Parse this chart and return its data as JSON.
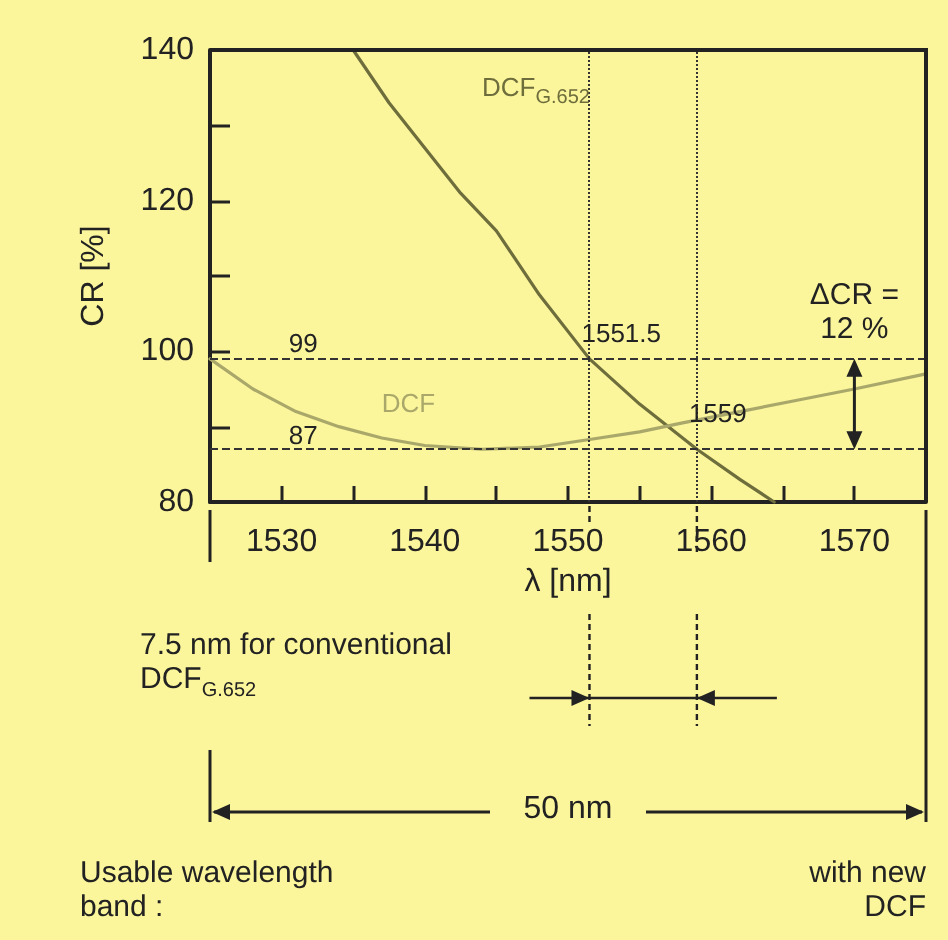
{
  "chart_data": {
    "type": "line",
    "xlabel": "λ [nm]",
    "ylabel": "CR [%]",
    "xlim": [
      1525,
      1575
    ],
    "xticks": [
      {
        "value": 1525,
        "label": null
      },
      1530,
      {
        "value": 1535,
        "label": null
      },
      1540,
      {
        "value": 1545,
        "label": null
      },
      1550,
      {
        "value": 1555,
        "label": null
      },
      1560,
      {
        "value": 1565,
        "label": null
      },
      1570,
      {
        "value": 1575,
        "label": null
      }
    ],
    "ylim": [
      80,
      140
    ],
    "yticks": [
      80,
      {
        "value": 90,
        "label": null
      },
      100,
      {
        "value": 110,
        "label": null
      },
      120,
      {
        "value": 130,
        "label": null
      },
      140
    ],
    "grid": false,
    "legend": false,
    "marker": "none",
    "line_style": "solid",
    "series": [
      {
        "name": "DCF$_{G.652}$",
        "color": "#6e6d3c",
        "x": [
          1535,
          1537.5,
          1540,
          1542.5,
          1545,
          1548,
          1551.5,
          1555,
          1559,
          1562,
          1564.4
        ],
        "values": [
          140,
          133,
          127,
          121,
          116,
          107.5,
          99,
          93,
          87,
          83,
          80
        ]
      },
      {
        "name": "DCF",
        "color": "#a9a86a",
        "x": [
          1525,
          1528,
          1531,
          1534,
          1537,
          1540,
          1544,
          1548,
          1551.5,
          1555,
          1558,
          1562,
          1566,
          1570,
          1575
        ],
        "values": [
          99,
          95,
          92,
          90,
          88.5,
          87.5,
          87,
          87.3,
          88.3,
          89.3,
          90.5,
          92,
          93.5,
          95,
          97
        ]
      }
    ],
    "ref_lines": [
      {
        "axis": "y",
        "value": 99,
        "label": "99",
        "line_style": "dashed",
        "color": "#333333"
      },
      {
        "axis": "y",
        "value": 87,
        "label": "87",
        "line_style": "dashed",
        "color": "#333333"
      },
      {
        "axis": "x",
        "value": 1551.5,
        "label": "1551.5",
        "line_style": "dotted",
        "color": "#333333"
      },
      {
        "axis": "x",
        "value": 1559,
        "label": "1559",
        "line_style": "dotted",
        "color": "#333333"
      }
    ],
    "annotations": [
      {
        "text": "ΔCR = 12 %",
        "x": 1570,
        "y": 99
      },
      "7.5 nm for conventional DCF$_{G.652}$",
      "50 nm",
      "Usable wavelength band :",
      "with new DCF"
    ]
  }
}
